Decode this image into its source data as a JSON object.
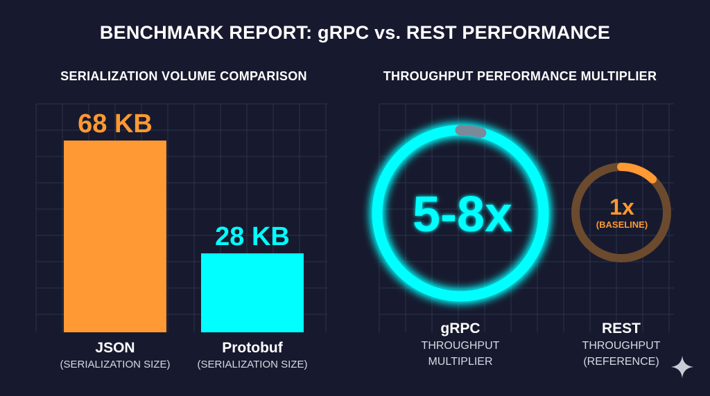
{
  "title": "BENCHMARK REPORT: gRPC vs. REST PERFORMANCE",
  "colors": {
    "background": "#171a2e",
    "grid": "#2e3349",
    "json": "#ff9933",
    "protobuf": "#00ffff",
    "rest_ring": "#6b4a2e",
    "rest_accent": "#ff9933"
  },
  "chart_data": [
    {
      "type": "bar",
      "title": "SERIALIZATION VOLUME COMPARISON",
      "categories": [
        "JSON",
        "Protobuf"
      ],
      "subtitles": [
        "(SERIALIZATION SIZE)",
        "(SERIALIZATION SIZE)"
      ],
      "values": [
        68,
        28
      ],
      "data_labels": [
        "68 KB",
        "28 KB"
      ],
      "unit": "KB",
      "grid": true
    },
    {
      "type": "gauge",
      "title": "THROUGHPUT PERFORMANCE MULTIPLIER",
      "items": [
        {
          "name": "gRPC",
          "value_label": "5-8x",
          "sub": [
            "THROUGHPUT",
            "MULTIPLIER"
          ],
          "accent_fraction": 0.04
        },
        {
          "name": "REST",
          "value_label": "1x",
          "value_note": "(BASELINE)",
          "sub": [
            "THROUGHPUT",
            "(REFERENCE)"
          ],
          "accent_fraction": 0.12
        }
      ],
      "grid": true
    }
  ],
  "icons": {
    "corner": "sparkle-icon"
  }
}
